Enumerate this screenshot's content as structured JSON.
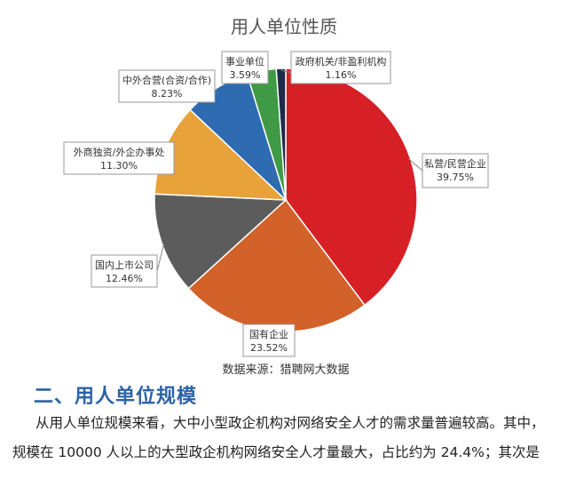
{
  "chart_data": {
    "type": "pie",
    "title": "用人单位性质",
    "source": "数据来源：猎聘网大数据",
    "categories": [
      "私营/民营企业",
      "国有企业",
      "国内上市公司",
      "外商独资/外企办事处",
      "中外合营(合资/合作)",
      "事业单位",
      "政府机关/非盈利机构"
    ],
    "values": [
      39.75,
      23.52,
      12.46,
      11.3,
      8.23,
      3.59,
      1.16
    ],
    "labels": [
      "39.75%",
      "23.52%",
      "12.46%",
      "11.30%",
      "8.23%",
      "3.59%",
      "1.16%"
    ],
    "colors": [
      "#d71f26",
      "#d2612a",
      "#5c5c5c",
      "#e8a23a",
      "#2e6bb0",
      "#3f9a45",
      "#1f2a4a"
    ],
    "start_angle_deg": 0,
    "direction": "clockwise"
  },
  "article": {
    "heading": "二、用人单位规模",
    "paragraph_line1": "从用人单位规模来看，大中小型政企机构对网络安全人才的需求量普遍较高。其中，",
    "paragraph_line2": "规模在 10000 人以上的大型政企机构网络安全人才量最大，占比约为 24.4%；其次是"
  }
}
